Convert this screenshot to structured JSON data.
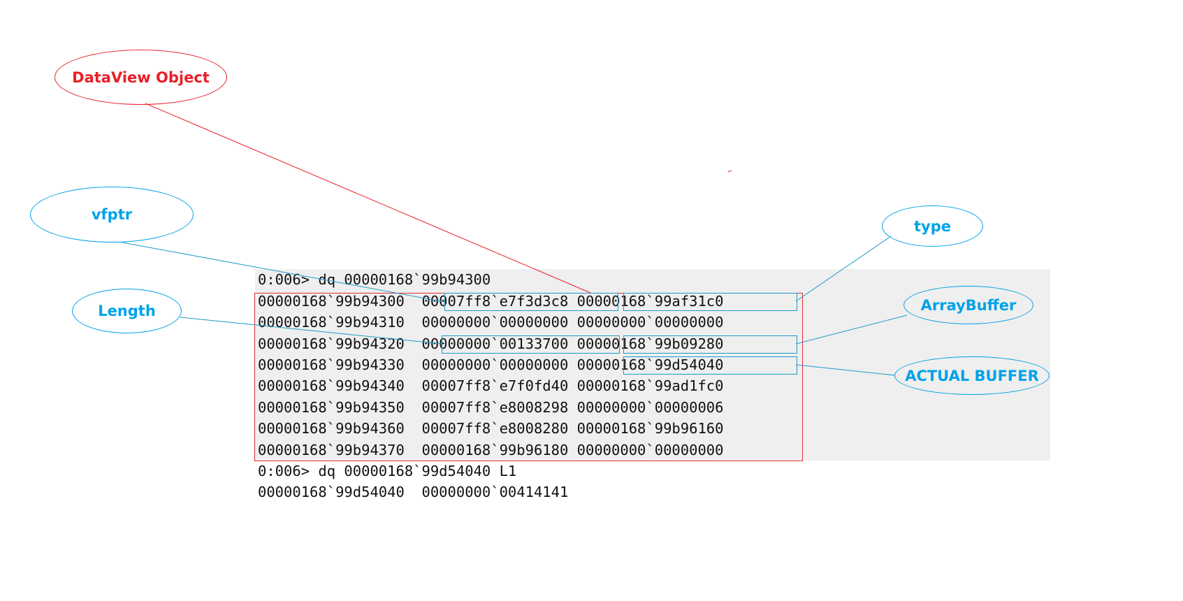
{
  "labels": {
    "dataview_object": "DataView Object",
    "vfptr": "vfptr",
    "length": "Length",
    "type": "type",
    "arraybuffer": "ArrayBuffer",
    "actual_buffer": "ACTUAL BUFFER"
  },
  "debugger": {
    "command_1": "0:006> dq 00000168`99b94300",
    "rows": [
      "00000168`99b94300  00007ff8`e7f3d3c8 00000168`99af31c0",
      "00000168`99b94310  00000000`00000000 00000000`00000000",
      "00000168`99b94320  00000000`00133700 00000168`99b09280",
      "00000168`99b94330  00000000`00000000 00000168`99d54040",
      "00000168`99b94340  00007ff8`e7f0fd40 00000168`99ad1fc0",
      "00000168`99b94350  00007ff8`e8008298 00000000`00000006",
      "00000168`99b94360  00007ff8`e8008280 00000168`99b96160",
      "00000168`99b94370  00000168`99b96180 00000000`00000000"
    ],
    "command_2": "0:006> dq 00000168`99d54040 L1",
    "result_2": "00000168`99d54040  00000000`00414141"
  },
  "colors": {
    "label_blue": "#00a2e8",
    "label_red": "#e81f27",
    "panel_gray": "#efefef"
  }
}
